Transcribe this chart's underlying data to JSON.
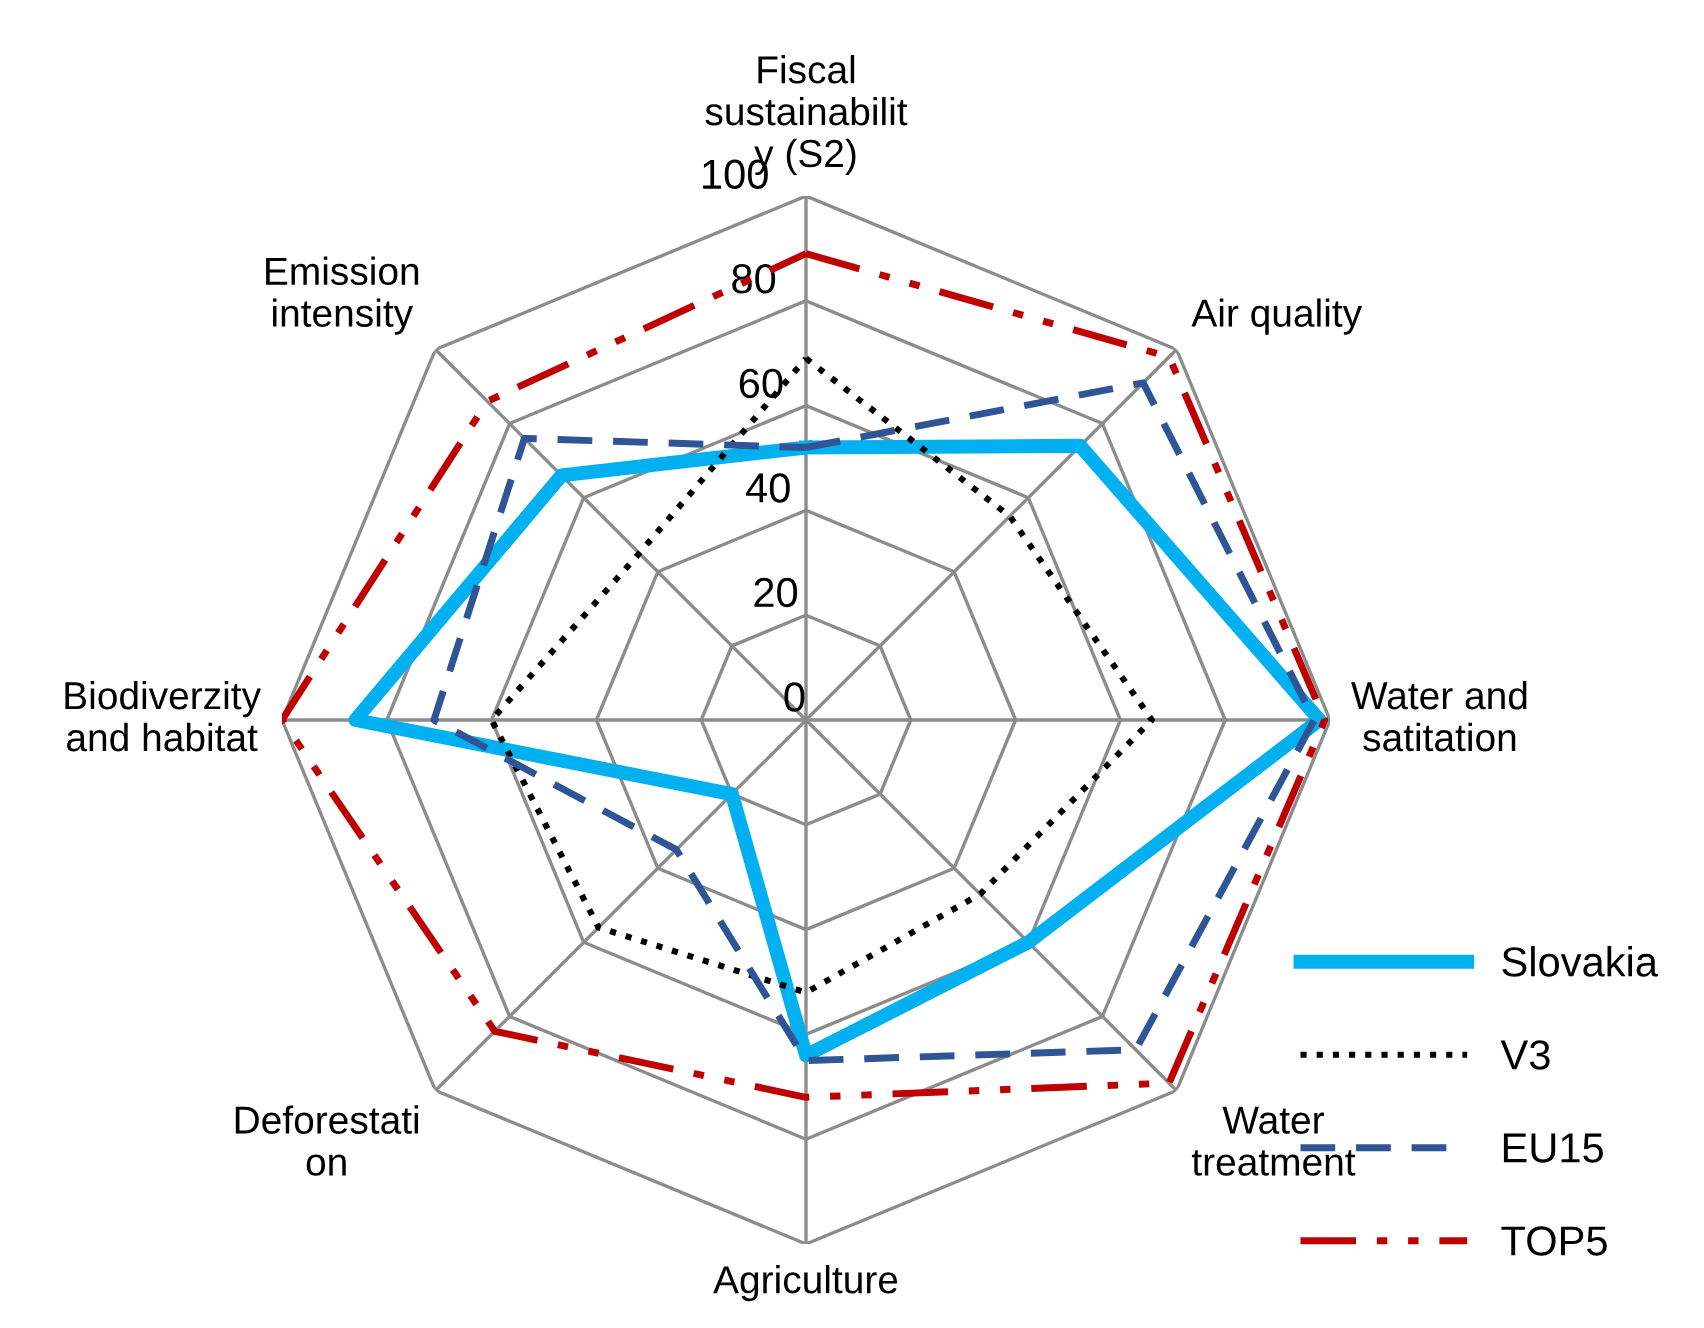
{
  "chart_data": {
    "type": "radar",
    "categories": [
      "Fiscal\nsustainabilit\ny (S2)",
      "Air quality",
      "Water and\nsatitation",
      "Water\ntreatment",
      "Agriculture",
      "Deforestati\non",
      "Biodiverzity\nand habitat",
      "Emission\nintensity"
    ],
    "ylim": [
      0,
      100
    ],
    "yticks": [
      0,
      20,
      40,
      60,
      80,
      100
    ],
    "grid": true,
    "legend": "bottom right",
    "series": [
      {
        "name": "Slovakia",
        "color": "#00b0f0",
        "line_style": "solid",
        "values": [
          52,
          74,
          98,
          60,
          64,
          20,
          86,
          66
        ]
      },
      {
        "name": "V3",
        "color": "#000000",
        "line_style": "dotted",
        "values": [
          69,
          55,
          66,
          47,
          52,
          56,
          60,
          45
        ]
      },
      {
        "name": "EU15",
        "color": "#2f5597",
        "line_style": "dashed",
        "values": [
          52,
          91,
          97,
          89,
          65,
          35,
          71,
          76
        ]
      },
      {
        "name": "TOP5",
        "color": "#c00000",
        "line_style": "dashdot",
        "values": [
          89,
          98,
          99,
          98,
          72,
          84,
          100,
          86
        ]
      }
    ]
  }
}
